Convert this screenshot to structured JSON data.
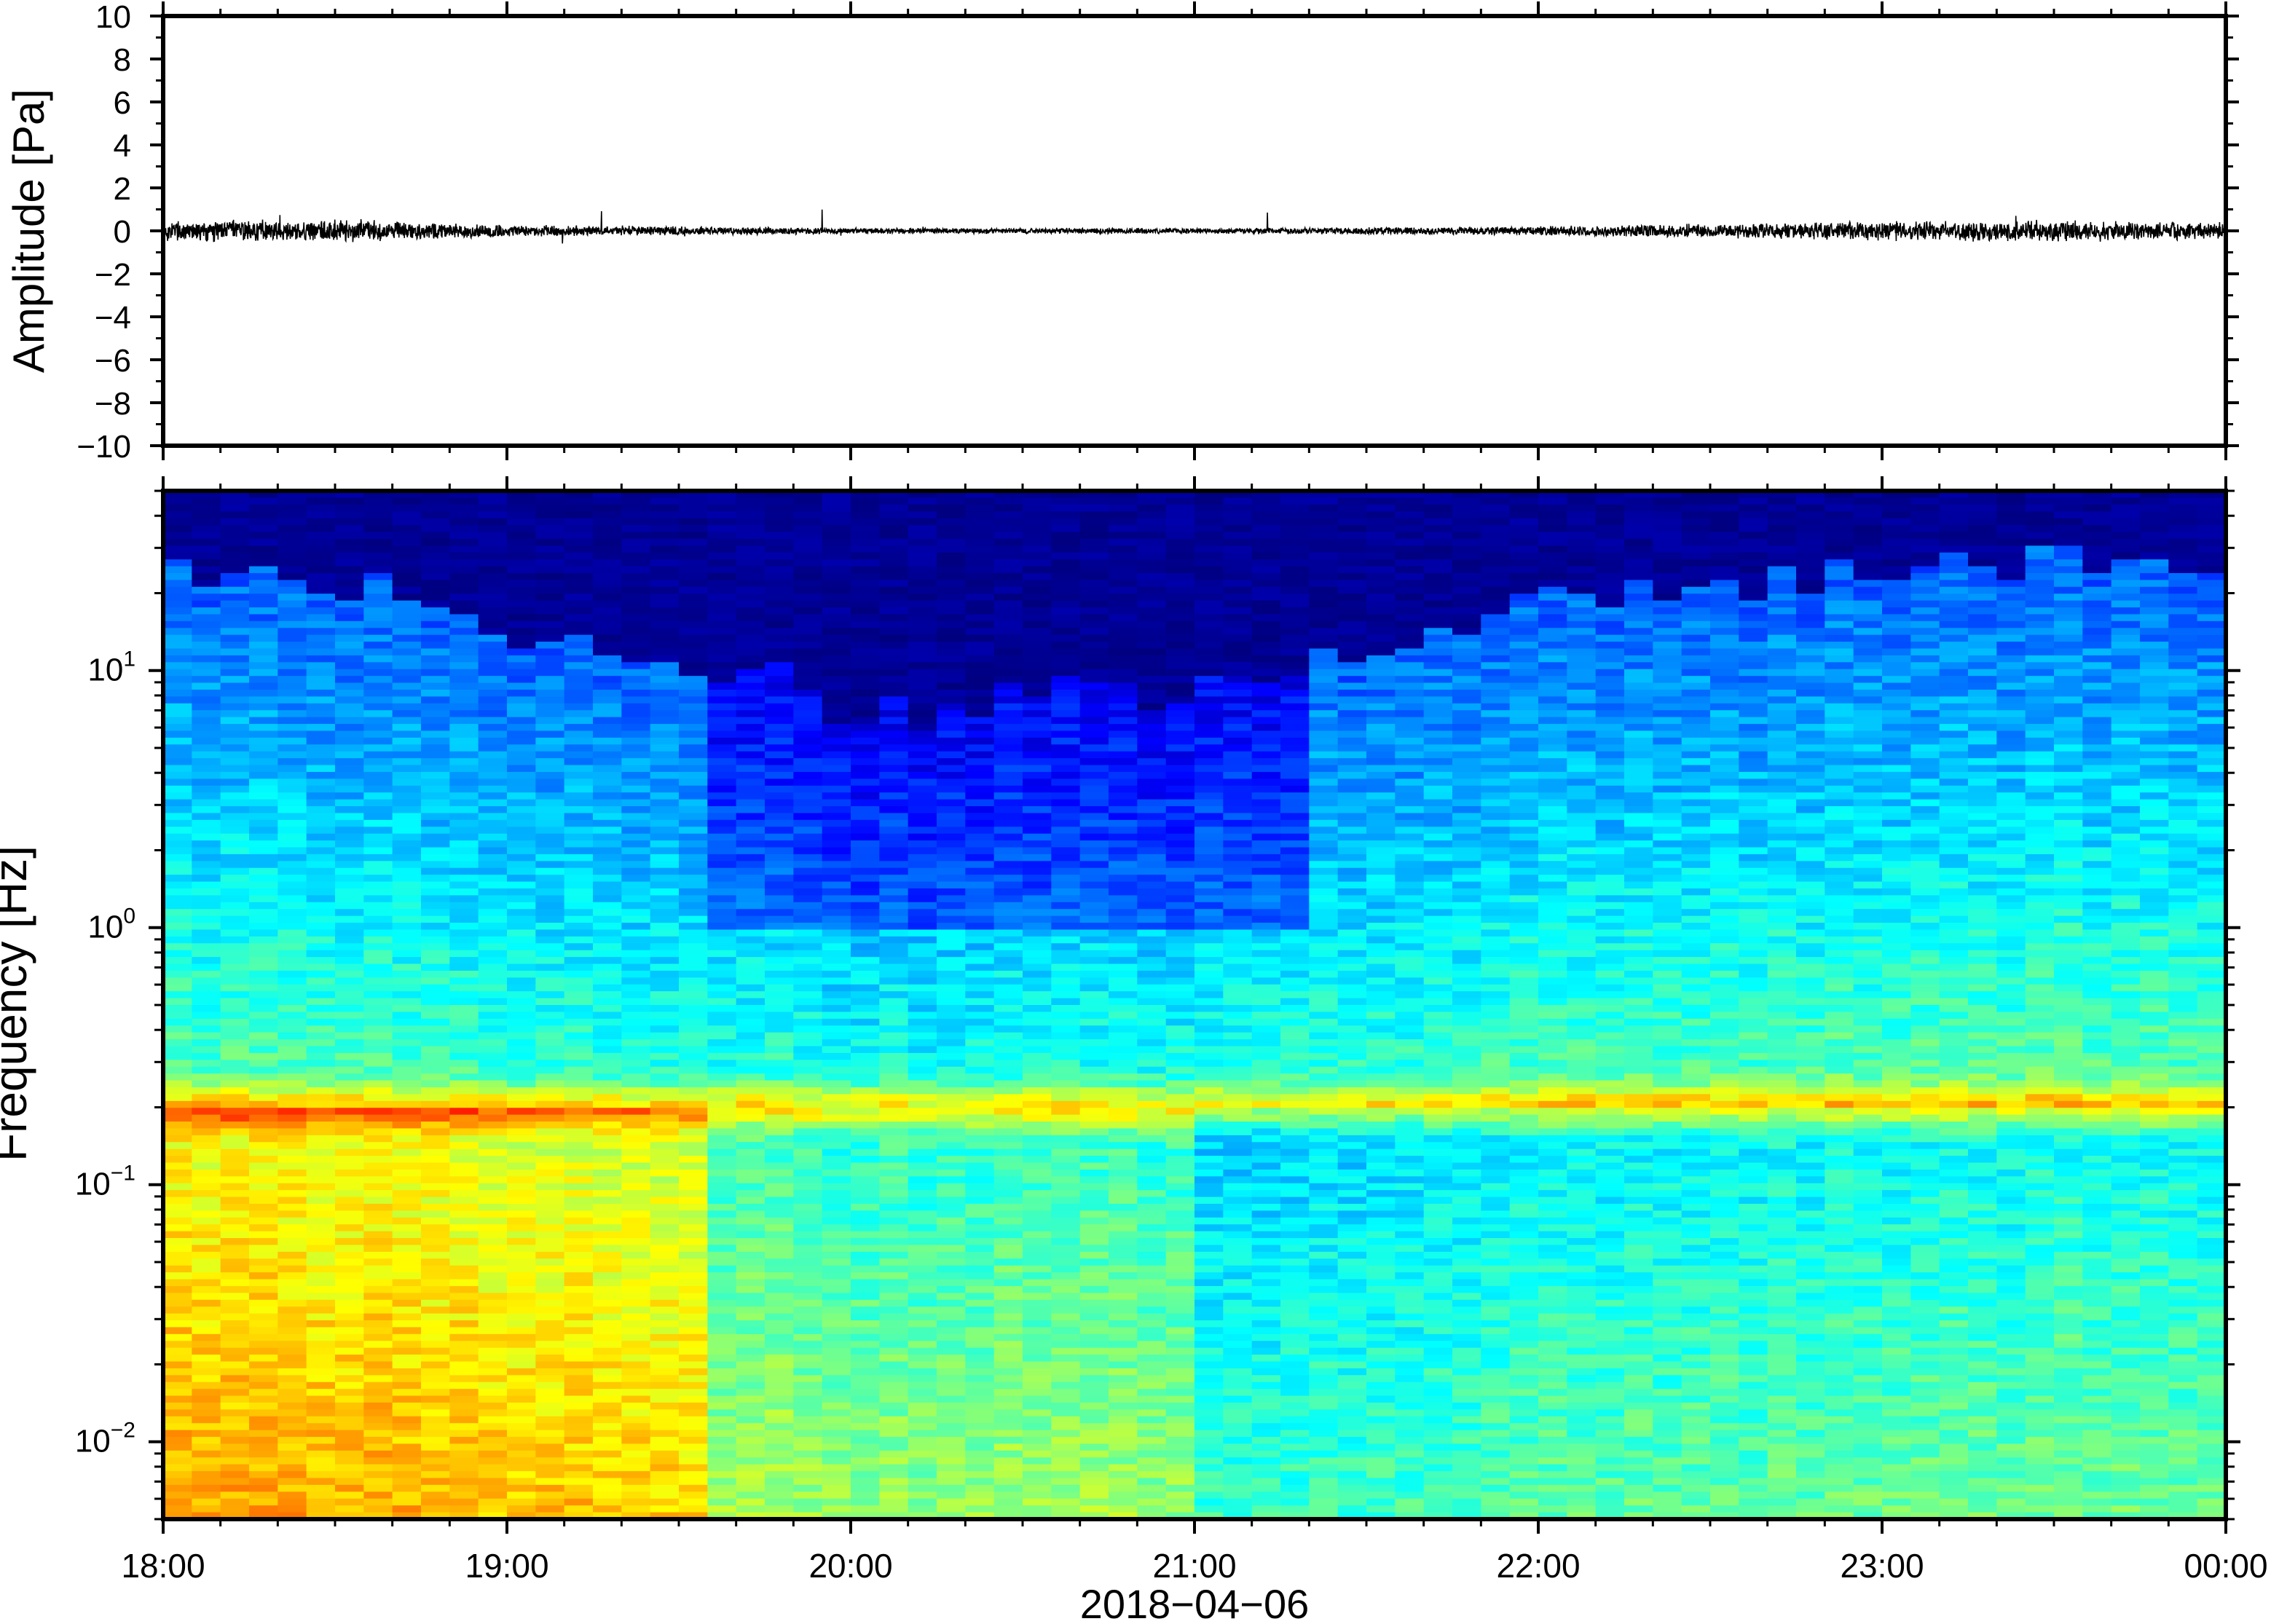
{
  "chart_data": [
    {
      "type": "line",
      "ylabel": "Amplitude [Pa]",
      "ylim": [
        -10,
        10
      ],
      "yticks": [
        "10",
        "8",
        "6",
        "4",
        "2",
        "0",
        "−2",
        "−4",
        "−6",
        "−8",
        "−10"
      ],
      "ytick_values": [
        10,
        8,
        6,
        4,
        2,
        0,
        -2,
        -4,
        -6,
        -8,
        -10
      ],
      "xlim": [
        "2018-04-06 18:00",
        "2018-04-07 00:00"
      ],
      "series": [
        {
          "x_hours": [
            18.0,
            18.5,
            19.0,
            19.5,
            20.0,
            20.5,
            21.0,
            21.5,
            22.0,
            22.5,
            23.0,
            23.5,
            24.0
          ],
          "envelope_pa": [
            0.45,
            0.5,
            0.25,
            0.2,
            0.12,
            0.12,
            0.12,
            0.15,
            0.2,
            0.3,
            0.4,
            0.45,
            0.35
          ],
          "peak_pa": 1.0,
          "color": "#000000"
        }
      ],
      "grid": false
    },
    {
      "type": "heatmap",
      "ylabel": "Frequency [Hz]",
      "xlabel": "2018−04−06",
      "yscale": "log",
      "ylim": [
        0.005,
        50
      ],
      "yticks": [
        {
          "value": 10,
          "base": "10",
          "exp": "1"
        },
        {
          "value": 1,
          "base": "10",
          "exp": "0"
        },
        {
          "value": 0.1,
          "base": "10",
          "exp": "−1"
        },
        {
          "value": 0.01,
          "base": "10",
          "exp": "−2"
        }
      ],
      "xticks": [
        "18:00",
        "19:00",
        "20:00",
        "21:00",
        "22:00",
        "23:00",
        "00:00"
      ],
      "xtick_hours": [
        18,
        19,
        20,
        21,
        22,
        23,
        24
      ],
      "colormap": "jet",
      "colormap_stops": [
        "#00007f",
        "#0000ff",
        "#007fff",
        "#00ffff",
        "#7fff7f",
        "#ffff00",
        "#ff7f00",
        "#ff0000"
      ],
      "features": {
        "microbarom_band_hz": 0.2,
        "upper_cutoff_hz": [
          25,
          22,
          15,
          12,
          7,
          8,
          8,
          12,
          18,
          22,
          25,
          28,
          25
        ],
        "cutoff_hours": [
          18.0,
          18.5,
          19.0,
          19.5,
          20.0,
          20.5,
          21.0,
          21.5,
          22.0,
          22.5,
          23.0,
          23.5,
          24.0
        ]
      },
      "grid": false
    }
  ]
}
